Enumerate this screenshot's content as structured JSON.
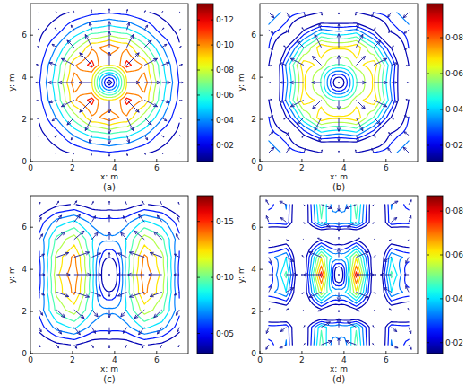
{
  "chart_data": [
    {
      "type": "quiver",
      "caption": "(a)",
      "x_label": "x: m",
      "y_label": "y: m",
      "xlim": [
        0,
        7.5
      ],
      "ylim": [
        0,
        7.5
      ],
      "xticks": [
        0,
        2,
        4,
        6
      ],
      "yticks": [
        0,
        2,
        4,
        6
      ],
      "color": "#1a1a9e",
      "x": [
        0.42,
        1.25,
        2.08,
        2.92,
        3.75,
        4.58,
        5.42,
        6.25,
        7.08
      ],
      "y": [
        0.42,
        1.25,
        2.08,
        2.92,
        3.75,
        4.58,
        5.42,
        6.25,
        7.08
      ],
      "u": [
        [
          -0.004,
          -0.006,
          -0.007,
          -0.005,
          0,
          0.005,
          0.007,
          0.006,
          0.004
        ],
        [
          -0.008,
          -0.014,
          -0.022,
          -0.017,
          0,
          0.017,
          0.022,
          0.014,
          0.008
        ],
        [
          -0.013,
          -0.033,
          -0.049,
          -0.045,
          0,
          0.045,
          0.049,
          0.033,
          0.013
        ],
        [
          -0.021,
          -0.052,
          -0.089,
          -0.085,
          0,
          0.085,
          0.089,
          0.052,
          0.021
        ],
        [
          -0.025,
          -0.06,
          -0.11,
          -0.09,
          0,
          0.09,
          0.11,
          0.06,
          0.025
        ],
        [
          -0.021,
          -0.052,
          -0.089,
          -0.085,
          0,
          0.085,
          0.089,
          0.052,
          0.021
        ],
        [
          -0.013,
          -0.033,
          -0.049,
          -0.045,
          0,
          0.045,
          0.049,
          0.033,
          0.013
        ],
        [
          -0.008,
          -0.014,
          -0.022,
          -0.017,
          0,
          0.017,
          0.022,
          0.014,
          0.008
        ],
        [
          -0.004,
          -0.006,
          -0.007,
          -0.005,
          0,
          0.005,
          0.007,
          0.006,
          0.004
        ]
      ],
      "v": [
        [
          -0.004,
          -0.008,
          -0.013,
          -0.021,
          -0.025,
          -0.021,
          -0.013,
          -0.008,
          -0.004
        ],
        [
          -0.006,
          -0.014,
          -0.033,
          -0.052,
          -0.06,
          -0.052,
          -0.033,
          -0.014,
          -0.006
        ],
        [
          -0.007,
          -0.022,
          -0.049,
          -0.089,
          -0.11,
          -0.089,
          -0.049,
          -0.022,
          -0.007
        ],
        [
          -0.005,
          -0.017,
          -0.045,
          -0.085,
          -0.09,
          -0.085,
          -0.045,
          -0.017,
          -0.005
        ],
        [
          0,
          0,
          0,
          0,
          0,
          0,
          0,
          0,
          0
        ],
        [
          0.005,
          0.017,
          0.045,
          0.085,
          0.09,
          0.085,
          0.045,
          0.017,
          0.005
        ],
        [
          0.007,
          0.022,
          0.049,
          0.089,
          0.11,
          0.089,
          0.049,
          0.022,
          0.007
        ],
        [
          0.006,
          0.014,
          0.033,
          0.052,
          0.06,
          0.052,
          0.033,
          0.014,
          0.006
        ],
        [
          0.004,
          0.008,
          0.013,
          0.021,
          0.025,
          0.021,
          0.013,
          0.008,
          0.004
        ]
      ],
      "colorbar": {
        "range": [
          0.007,
          0.133
        ],
        "ticks": [
          {
            "value": 0.02,
            "label": "0·02"
          },
          {
            "value": 0.04,
            "label": "0·04"
          },
          {
            "value": 0.06,
            "label": "0·06"
          },
          {
            "value": 0.08,
            "label": "0·08"
          },
          {
            "value": 0.1,
            "label": "0·10"
          },
          {
            "value": 0.12,
            "label": "0·12"
          }
        ]
      }
    },
    {
      "type": "quiver",
      "caption": "(b)",
      "x_label": "x: m",
      "y_label": "y: m",
      "xlim": [
        0,
        7.5
      ],
      "ylim": [
        0,
        7.5
      ],
      "xticks": [
        0,
        2,
        4,
        6
      ],
      "yticks": [
        0,
        2,
        4,
        6
      ],
      "color": "#1a1a9e",
      "x": [
        0.42,
        1.25,
        2.08,
        2.92,
        3.75,
        4.58,
        5.42,
        6.25,
        7.08
      ],
      "y": [
        0.42,
        1.25,
        2.08,
        2.92,
        3.75,
        4.58,
        5.42,
        6.25,
        7.08
      ],
      "u": [
        [
          0.028,
          0.018,
          0.011,
          0.004,
          0,
          -0.004,
          -0.011,
          -0.018,
          -0.028
        ],
        [
          0.024,
          0.014,
          -0.008,
          -0.011,
          0,
          0.011,
          0.008,
          -0.014,
          -0.024
        ],
        [
          0.022,
          -0.012,
          -0.035,
          -0.034,
          0,
          0.034,
          0.035,
          0.012,
          -0.022
        ],
        [
          0.015,
          -0.033,
          -0.067,
          -0.046,
          0,
          0.046,
          0.067,
          0.033,
          -0.015
        ],
        [
          0.01,
          -0.03,
          -0.07,
          -0.05,
          0,
          0.05,
          0.07,
          0.03,
          -0.01
        ],
        [
          0.015,
          -0.033,
          -0.067,
          -0.046,
          0,
          0.046,
          0.067,
          0.033,
          -0.015
        ],
        [
          0.022,
          -0.012,
          -0.035,
          -0.034,
          0,
          0.034,
          0.035,
          0.012,
          -0.022
        ],
        [
          0.024,
          0.014,
          -0.008,
          -0.011,
          0,
          0.011,
          0.008,
          -0.014,
          -0.024
        ],
        [
          0.028,
          0.018,
          0.011,
          0.004,
          0,
          -0.004,
          -0.011,
          -0.018,
          -0.028
        ]
      ],
      "v": [
        [
          0.028,
          0.024,
          0.022,
          0.015,
          0.01,
          0.015,
          0.022,
          0.024,
          0.028
        ],
        [
          0.018,
          0.014,
          -0.012,
          -0.033,
          -0.03,
          -0.033,
          -0.012,
          0.014,
          0.018
        ],
        [
          0.011,
          -0.008,
          -0.035,
          -0.067,
          -0.07,
          -0.067,
          -0.035,
          -0.008,
          0.011
        ],
        [
          0.004,
          -0.011,
          -0.034,
          -0.046,
          -0.05,
          -0.046,
          -0.034,
          -0.011,
          0.004
        ],
        [
          0,
          0,
          0,
          0,
          0,
          0,
          0,
          0,
          0
        ],
        [
          -0.004,
          0.011,
          0.034,
          0.046,
          0.05,
          0.046,
          0.034,
          0.011,
          -0.004
        ],
        [
          -0.011,
          0.008,
          0.035,
          0.067,
          0.07,
          0.067,
          0.035,
          0.008,
          -0.011
        ],
        [
          -0.018,
          -0.014,
          0.012,
          0.033,
          0.03,
          0.033,
          0.012,
          -0.014,
          -0.018
        ],
        [
          -0.028,
          -0.024,
          -0.022,
          -0.015,
          -0.01,
          -0.015,
          -0.022,
          -0.024,
          -0.028
        ]
      ],
      "colorbar": {
        "range": [
          0.011,
          0.099
        ],
        "ticks": [
          {
            "value": 0.02,
            "label": "0·02"
          },
          {
            "value": 0.04,
            "label": "0·04"
          },
          {
            "value": 0.06,
            "label": "0·06"
          },
          {
            "value": 0.08,
            "label": "0·08"
          }
        ]
      }
    },
    {
      "type": "quiver",
      "caption": "(c)",
      "x_label": "x: m",
      "y_label": "y: m",
      "xlim": [
        0,
        7.5
      ],
      "ylim": [
        0,
        7.5
      ],
      "xticks": [
        0,
        2,
        4,
        6
      ],
      "yticks": [
        0,
        2,
        4,
        6
      ],
      "color": "#1a1a9e",
      "x": [
        0.42,
        1.25,
        2.08,
        2.92,
        3.75,
        4.58,
        5.42,
        6.25,
        7.08
      ],
      "y": [
        0.42,
        1.25,
        2.08,
        2.92,
        3.75,
        4.58,
        5.42,
        6.25,
        7.08
      ],
      "u": [
        [
          0.008,
          0.018,
          0.023,
          0.014,
          0,
          -0.014,
          -0.023,
          -0.018,
          -0.008
        ],
        [
          0.018,
          0.042,
          0.053,
          0.032,
          0,
          -0.032,
          -0.053,
          -0.042,
          -0.018
        ],
        [
          0.03,
          0.072,
          0.09,
          0.054,
          0,
          -0.054,
          -0.09,
          -0.072,
          -0.03
        ],
        [
          0.045,
          0.108,
          0.135,
          0.081,
          0,
          -0.081,
          -0.135,
          -0.108,
          -0.045
        ],
        [
          0.05,
          0.12,
          0.15,
          0.09,
          0,
          -0.09,
          -0.15,
          -0.12,
          -0.05
        ],
        [
          0.045,
          0.108,
          0.135,
          0.081,
          0,
          -0.081,
          -0.135,
          -0.108,
          -0.045
        ],
        [
          0.03,
          0.072,
          0.09,
          0.054,
          0,
          -0.054,
          -0.09,
          -0.072,
          -0.03
        ],
        [
          0.018,
          0.042,
          0.053,
          0.032,
          0,
          -0.032,
          -0.053,
          -0.042,
          -0.018
        ],
        [
          0.008,
          0.018,
          0.023,
          0.014,
          0,
          -0.014,
          -0.023,
          -0.018,
          -0.008
        ]
      ],
      "v": [
        [
          -0.021,
          -0.03,
          -0.033,
          -0.027,
          -0.03,
          -0.027,
          -0.033,
          -0.03,
          -0.021
        ],
        [
          -0.042,
          -0.06,
          -0.066,
          -0.054,
          -0.06,
          -0.054,
          -0.066,
          -0.06,
          -0.042
        ],
        [
          -0.049,
          -0.07,
          -0.077,
          -0.063,
          -0.07,
          -0.063,
          -0.077,
          -0.07,
          -0.049
        ],
        [
          -0.028,
          -0.04,
          -0.044,
          -0.036,
          -0.04,
          -0.036,
          -0.044,
          -0.04,
          -0.028
        ],
        [
          0,
          0,
          0,
          0,
          0,
          0,
          0,
          0,
          0
        ],
        [
          0.028,
          0.04,
          0.044,
          0.036,
          0.04,
          0.036,
          0.044,
          0.04,
          0.028
        ],
        [
          0.049,
          0.07,
          0.077,
          0.063,
          0.07,
          0.063,
          0.077,
          0.07,
          0.049
        ],
        [
          0.042,
          0.06,
          0.066,
          0.054,
          0.06,
          0.054,
          0.066,
          0.06,
          0.042
        ],
        [
          0.021,
          0.03,
          0.033,
          0.027,
          0.03,
          0.027,
          0.033,
          0.03,
          0.021
        ]
      ],
      "colorbar": {
        "range": [
          0.032,
          0.173
        ],
        "ticks": [
          {
            "value": 0.05,
            "label": "0·05"
          },
          {
            "value": 0.1,
            "label": "0·10"
          },
          {
            "value": 0.15,
            "label": "0·15"
          }
        ]
      }
    },
    {
      "type": "quiver",
      "caption": "(d)",
      "x_label": "x: m",
      "y_label": "y: m",
      "xlim": [
        0,
        7.5
      ],
      "ylim": [
        0,
        7.5
      ],
      "xticks": [
        0,
        2,
        4,
        6
      ],
      "yticks": [
        0,
        2,
        4,
        6
      ],
      "color": "#1a1a9e",
      "x": [
        0.42,
        1.25,
        2.08,
        2.92,
        3.75,
        4.58,
        5.42,
        6.25,
        7.08
      ],
      "y": [
        0.42,
        1.25,
        2.08,
        2.92,
        3.75,
        4.58,
        5.42,
        6.25,
        7.08
      ],
      "u": [
        [
          -0.012,
          -0.03,
          0.006,
          0.048,
          0,
          -0.048,
          -0.006,
          0.03,
          0.012
        ],
        [
          -0.01,
          -0.025,
          0.005,
          0.04,
          0,
          -0.04,
          -0.005,
          0.025,
          0.01
        ],
        [
          0.004,
          0.01,
          -0.002,
          -0.016,
          0,
          0.016,
          0.002,
          -0.01,
          -0.004
        ],
        [
          0.014,
          0.035,
          -0.007,
          -0.056,
          0,
          0.056,
          0.007,
          -0.035,
          -0.014
        ],
        [
          0.02,
          0.05,
          -0.01,
          -0.08,
          0,
          0.08,
          0.01,
          -0.05,
          -0.02
        ],
        [
          0.014,
          0.035,
          -0.007,
          -0.056,
          0,
          0.056,
          0.007,
          -0.035,
          -0.014
        ],
        [
          0.004,
          0.01,
          -0.002,
          -0.016,
          0,
          0.016,
          0.002,
          -0.01,
          -0.004
        ],
        [
          -0.01,
          -0.025,
          0.005,
          0.04,
          0,
          -0.04,
          -0.005,
          0.025,
          0.01
        ],
        [
          -0.012,
          -0.03,
          0.006,
          0.048,
          0,
          -0.048,
          -0.006,
          0.03,
          0.012
        ]
      ],
      "v": [
        [
          -0.021,
          -0.015,
          0.006,
          0.018,
          0.03,
          0.018,
          0.006,
          -0.015,
          -0.021
        ],
        [
          -0.028,
          -0.02,
          0.008,
          0.024,
          0.04,
          0.024,
          0.008,
          -0.02,
          -0.028
        ],
        [
          0.007,
          0.005,
          -0.002,
          -0.006,
          -0.01,
          -0.006,
          -0.002,
          0.005,
          0.007
        ],
        [
          0.028,
          0.02,
          -0.008,
          -0.024,
          -0.04,
          -0.024,
          -0.008,
          0.02,
          0.028
        ],
        [
          0,
          0,
          0,
          0,
          0,
          0,
          0,
          0,
          0
        ],
        [
          -0.028,
          -0.02,
          0.008,
          0.024,
          0.04,
          0.024,
          0.008,
          -0.02,
          -0.028
        ],
        [
          -0.007,
          -0.005,
          0.002,
          0.006,
          0.01,
          0.006,
          0.002,
          -0.005,
          -0.007
        ],
        [
          0.028,
          0.02,
          -0.008,
          -0.024,
          -0.04,
          -0.024,
          -0.008,
          0.02,
          0.028
        ],
        [
          0.021,
          0.015,
          -0.006,
          -0.018,
          -0.03,
          -0.018,
          -0.006,
          0.015,
          0.021
        ]
      ],
      "colorbar": {
        "range": [
          0.015,
          0.087
        ],
        "ticks": [
          {
            "value": 0.02,
            "label": "0·02"
          },
          {
            "value": 0.04,
            "label": "0·04"
          },
          {
            "value": 0.06,
            "label": "0·06"
          },
          {
            "value": 0.08,
            "label": "0·08"
          }
        ]
      }
    }
  ]
}
